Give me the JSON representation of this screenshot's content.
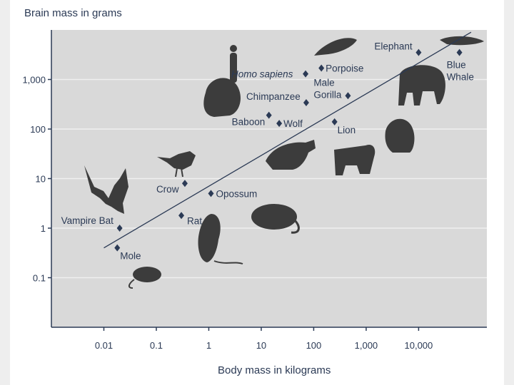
{
  "chart_data": {
    "type": "scatter",
    "ylabel": "Brain mass in grams",
    "xlabel": "Body mass in kilograms",
    "x_scale": "log",
    "y_scale": "log",
    "x_ticks": [
      "0.01",
      "0.1",
      "1",
      "10",
      "100",
      "1,000",
      "10,000"
    ],
    "y_ticks": [
      "0.1",
      "1",
      "10",
      "100",
      "1,000"
    ],
    "xlim": [
      0.001,
      200000
    ],
    "ylim": [
      0.01,
      10000
    ],
    "grid": true,
    "points": [
      {
        "label": "Vampire Bat",
        "x": 0.02,
        "y": 1.0
      },
      {
        "label": "Mole",
        "x": 0.018,
        "y": 0.4
      },
      {
        "label": "Rat",
        "x": 0.3,
        "y": 1.8
      },
      {
        "label": "Crow",
        "x": 0.35,
        "y": 8
      },
      {
        "label": "Opossum",
        "x": 1.1,
        "y": 5
      },
      {
        "label": "Baboon",
        "x": 14,
        "y": 190
      },
      {
        "label": "Wolf",
        "x": 22,
        "y": 130
      },
      {
        "label": "Homo sapiens",
        "x": 70,
        "y": 1300
      },
      {
        "label": "Chimpanzee",
        "x": 72,
        "y": 340
      },
      {
        "label": "Porpoise",
        "x": 140,
        "y": 1700
      },
      {
        "label": "Male Gorilla",
        "x": 450,
        "y": 470
      },
      {
        "label": "Lion",
        "x": 250,
        "y": 140
      },
      {
        "label": "Elephant",
        "x": 10000,
        "y": 3500
      },
      {
        "label": "Blue Whale",
        "x": 60000,
        "y": 3500
      }
    ],
    "trendline": {
      "x1": 0.01,
      "y1": 0.4,
      "x2": 100000,
      "y2": 9000
    },
    "colors": {
      "plot_bg": "#d9d9d9",
      "marker": "#2b3a55",
      "line": "#2b3a55",
      "grid": "#f0f0f0",
      "silhouette": "#3c3c3c"
    }
  }
}
